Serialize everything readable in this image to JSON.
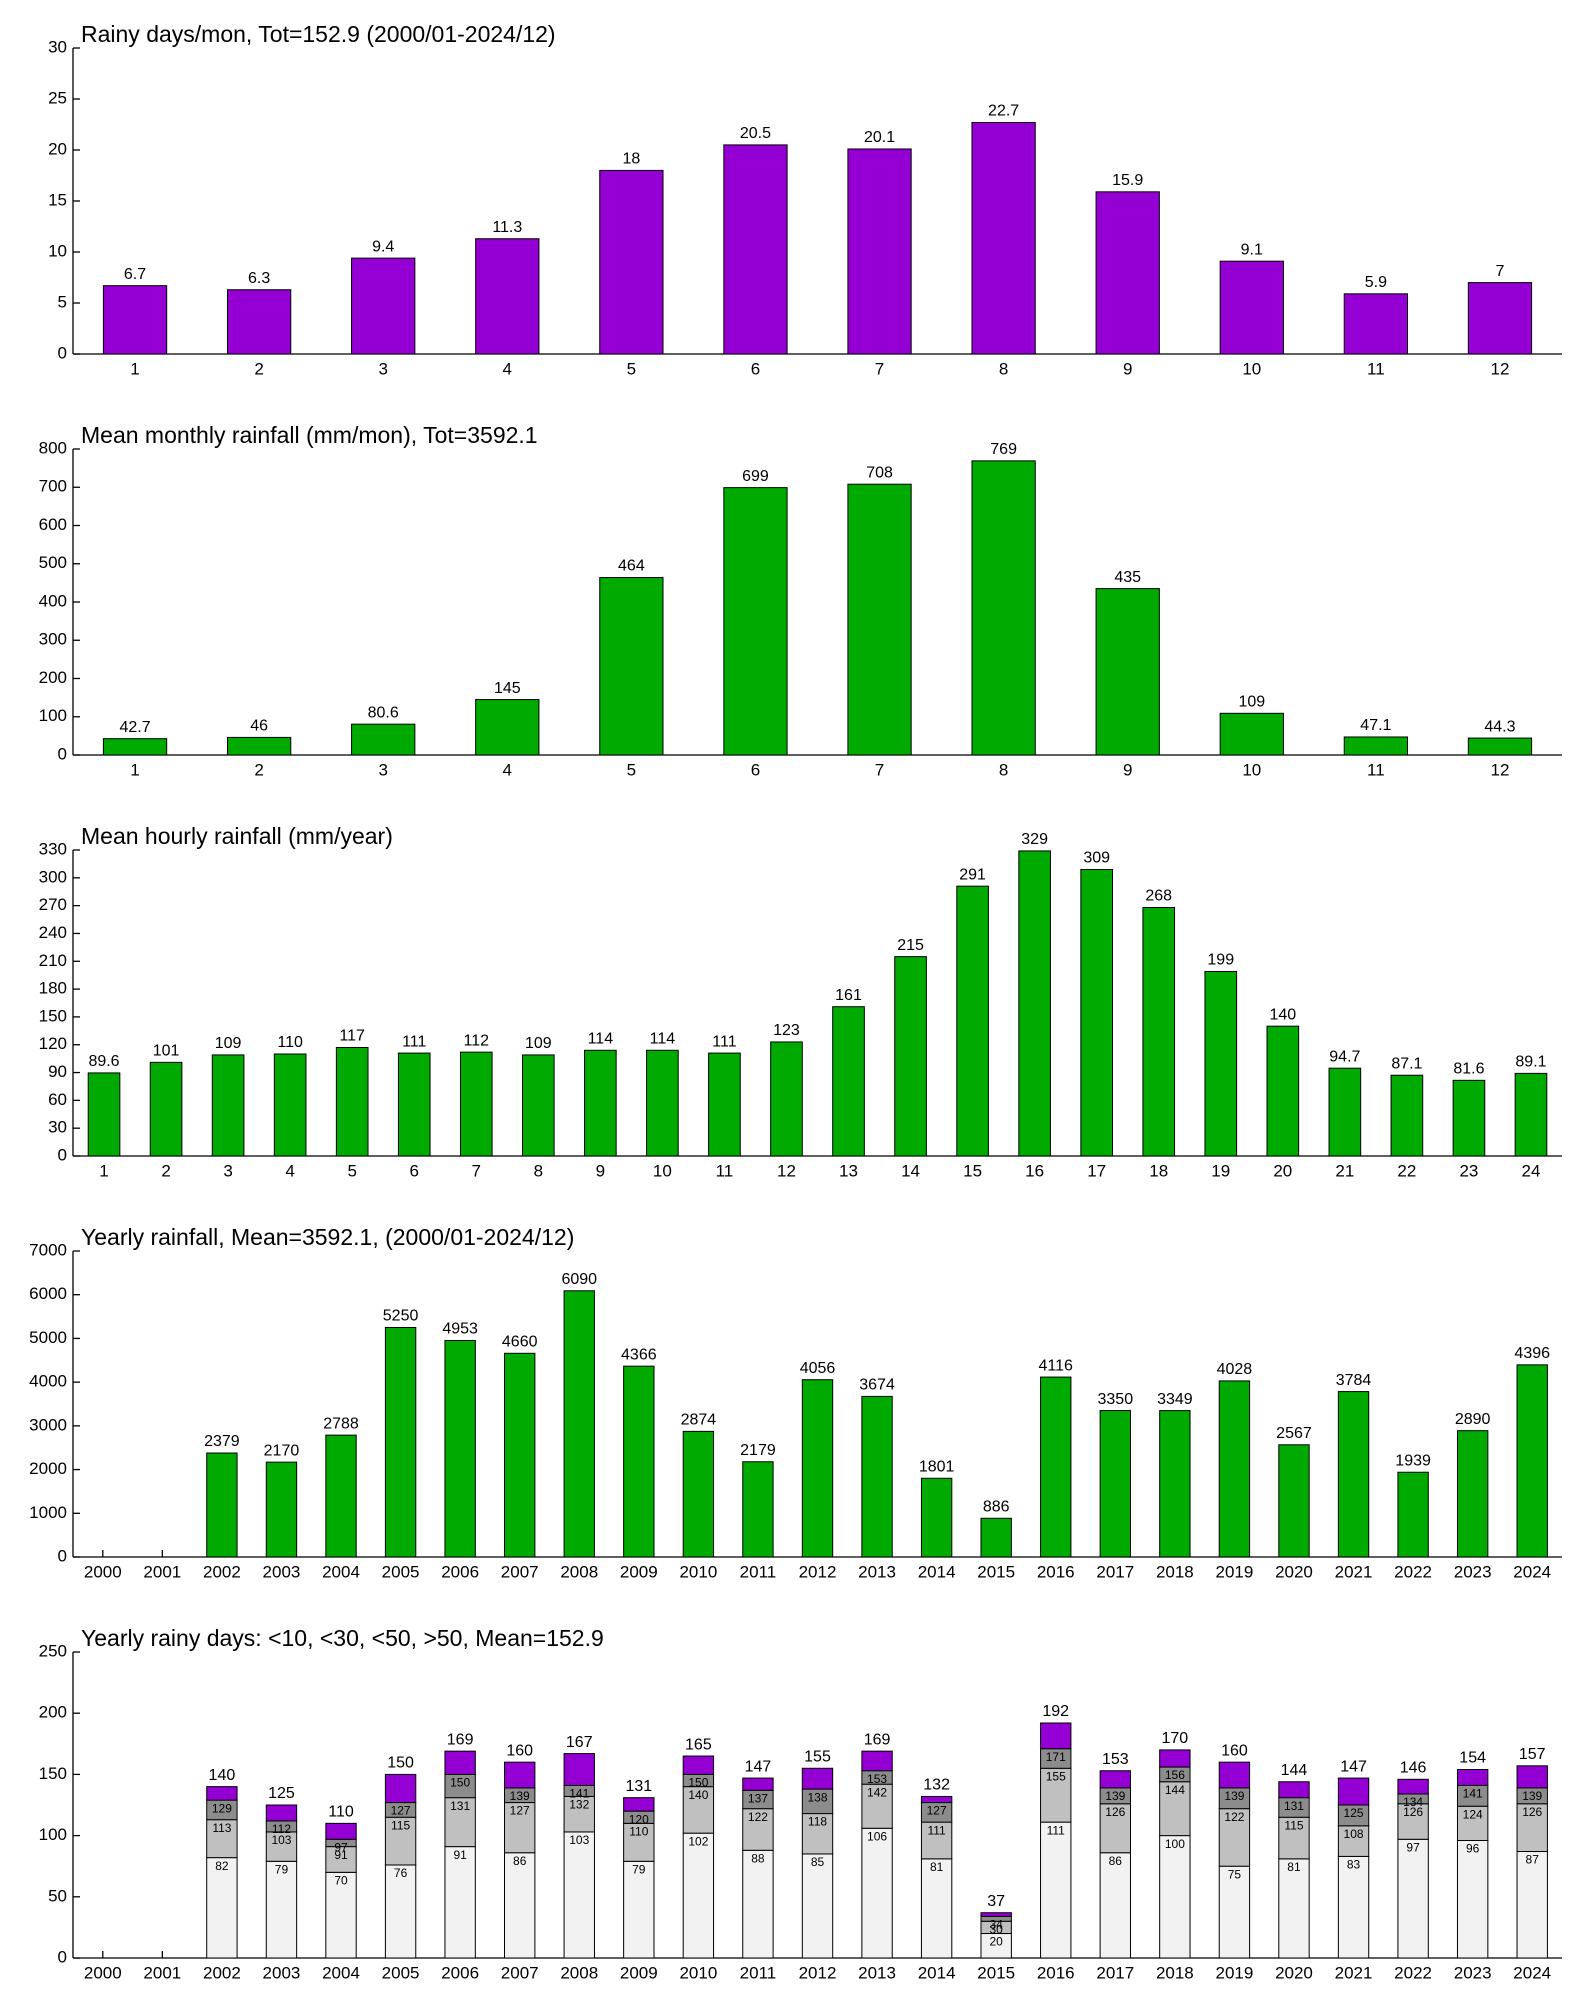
{
  "chart_data": [
    {
      "type": "bar",
      "title": "Rainy days/mon, Tot=152.9 (2000/01-2024/12)",
      "color": "#9400d3",
      "categories": [
        "1",
        "2",
        "3",
        "4",
        "5",
        "6",
        "7",
        "8",
        "9",
        "10",
        "11",
        "12"
      ],
      "values": [
        6.7,
        6.3,
        9.4,
        11.3,
        18,
        20.5,
        20.1,
        22.7,
        15.9,
        9.1,
        5.9,
        7
      ],
      "ylim": [
        0,
        30
      ],
      "yticks": [
        0,
        5,
        10,
        15,
        20,
        25,
        30
      ]
    },
    {
      "type": "bar",
      "title": "Mean monthly rainfall (mm/mon), Tot=3592.1",
      "color": "#00aa00",
      "categories": [
        "1",
        "2",
        "3",
        "4",
        "5",
        "6",
        "7",
        "8",
        "9",
        "10",
        "11",
        "12"
      ],
      "values": [
        42.7,
        46,
        80.6,
        145,
        464,
        699,
        708,
        769,
        435,
        109,
        47.1,
        44.3
      ],
      "ylim": [
        0,
        800
      ],
      "yticks": [
        0,
        100,
        200,
        300,
        400,
        500,
        600,
        700,
        800
      ]
    },
    {
      "type": "bar",
      "title": "Mean hourly rainfall (mm/year)",
      "color": "#00aa00",
      "categories": [
        "1",
        "2",
        "3",
        "4",
        "5",
        "6",
        "7",
        "8",
        "9",
        "10",
        "11",
        "12",
        "13",
        "14",
        "15",
        "16",
        "17",
        "18",
        "19",
        "20",
        "21",
        "22",
        "23",
        "24"
      ],
      "values": [
        89.6,
        101,
        109,
        110,
        117,
        111,
        112,
        109,
        114,
        114,
        111,
        123,
        161,
        215,
        291,
        329,
        309,
        268,
        199,
        140,
        94.7,
        87.1,
        81.6,
        89.1
      ],
      "ylim": [
        0,
        330
      ],
      "yticks": [
        0,
        30,
        60,
        90,
        120,
        150,
        180,
        210,
        240,
        270,
        300,
        330
      ]
    },
    {
      "type": "bar",
      "title": "Yearly rainfall, Mean=3592.1, (2000/01-2024/12)",
      "color": "#00aa00",
      "categories": [
        "2000",
        "2001",
        "2002",
        "2003",
        "2004",
        "2005",
        "2006",
        "2007",
        "2008",
        "2009",
        "2010",
        "2011",
        "2012",
        "2013",
        "2014",
        "2015",
        "2016",
        "2017",
        "2018",
        "2019",
        "2020",
        "2021",
        "2022",
        "2023",
        "2024"
      ],
      "values": [
        null,
        null,
        2379,
        2170,
        2788,
        5250,
        4953,
        4660,
        6090,
        4366,
        2874,
        2179,
        4056,
        3674,
        1801,
        886,
        4116,
        3350,
        3349,
        4028,
        2567,
        3784,
        1939,
        2890,
        4396
      ],
      "ylim": [
        0,
        7000
      ],
      "yticks": [
        0,
        1000,
        2000,
        3000,
        4000,
        5000,
        6000,
        7000
      ]
    },
    {
      "type": "stacked_bar",
      "title": "Yearly rainy days: <10, <30, <50, >50, Mean=152.9",
      "categories": [
        "2000",
        "2001",
        "2002",
        "2003",
        "2004",
        "2005",
        "2006",
        "2007",
        "2008",
        "2009",
        "2010",
        "2011",
        "2012",
        "2013",
        "2014",
        "2015",
        "2016",
        "2017",
        "2018",
        "2019",
        "2020",
        "2021",
        "2022",
        "2023",
        "2024"
      ],
      "series": [
        {
          "color": "#f2f2f2",
          "values": [
            null,
            null,
            82,
            79,
            70,
            76,
            91,
            86,
            103,
            79,
            102,
            88,
            85,
            106,
            81,
            20,
            111,
            86,
            100,
            75,
            81,
            83,
            97,
            96,
            87
          ]
        },
        {
          "color": "#c0c0c0",
          "values": [
            null,
            null,
            31,
            24,
            21,
            39,
            40,
            41,
            29,
            31,
            38,
            34,
            33,
            36,
            30,
            10,
            44,
            40,
            44,
            47,
            34,
            25,
            29,
            28,
            39
          ],
          "labels": [
            null,
            null,
            "113",
            "103",
            "91",
            "115",
            "131",
            "127",
            "132",
            "110",
            "140",
            "122",
            "118",
            "142",
            "111",
            "30",
            "155",
            "126",
            "144",
            "122",
            "115",
            "108",
            "126",
            "124",
            "126"
          ]
        },
        {
          "color": "#8c8c8c",
          "values": [
            null,
            null,
            16,
            9,
            6,
            12,
            19,
            12,
            9,
            10,
            10,
            15,
            20,
            11,
            16,
            4,
            16,
            13,
            12,
            17,
            16,
            17,
            8,
            17,
            13
          ],
          "labels": [
            null,
            null,
            "129",
            "112",
            "97",
            "127",
            "150",
            "139",
            "141",
            "120",
            "150",
            "137",
            "138",
            "153",
            "127",
            "34",
            "171",
            "139",
            "156",
            "139",
            "131",
            "125",
            "134",
            "141",
            "139"
          ]
        },
        {
          "color": "#9400d3",
          "values": [
            null,
            null,
            11,
            13,
            13,
            23,
            19,
            21,
            26,
            11,
            15,
            10,
            17,
            16,
            5,
            3,
            21,
            14,
            14,
            21,
            13,
            22,
            12,
            13,
            18
          ]
        }
      ],
      "totals": [
        null,
        null,
        140,
        125,
        110,
        150,
        169,
        160,
        167,
        131,
        165,
        147,
        155,
        169,
        132,
        37,
        192,
        153,
        170,
        160,
        144,
        147,
        146,
        154,
        157
      ],
      "ylim": [
        0,
        250
      ],
      "yticks": [
        0,
        50,
        100,
        150,
        200,
        250
      ]
    }
  ]
}
